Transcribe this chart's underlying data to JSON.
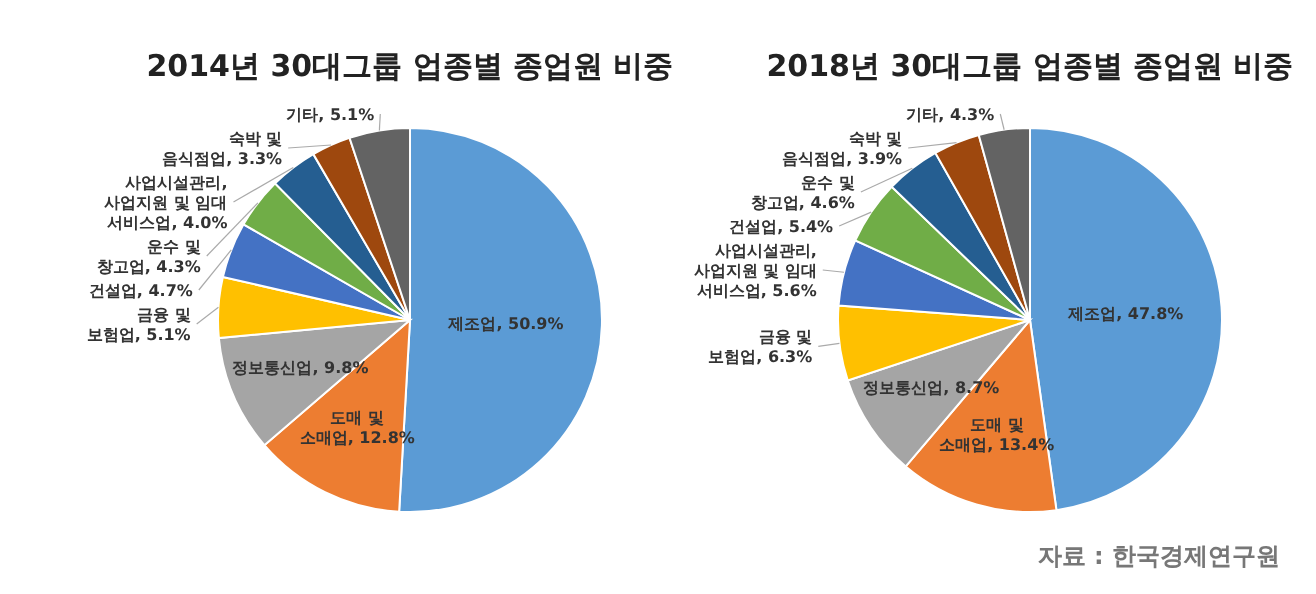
{
  "chart_data": [
    {
      "type": "pie",
      "title": "2014년 30대그룹 업종별 종업원 비중",
      "categories": [
        "제조업",
        "도매 및 소매업",
        "정보통신업",
        "금융 및 보험업",
        "건설업",
        "운수 및 창고업",
        "사업시설관리, 사업지원 및 임대 서비스업",
        "숙박 및 음식점업",
        "기타"
      ],
      "values": [
        50.9,
        12.8,
        9.8,
        5.1,
        4.7,
        4.3,
        4.0,
        3.3,
        5.1
      ],
      "colors": [
        "#5b9bd5",
        "#ed7d31",
        "#a5a5a5",
        "#ffc000",
        "#4472c4",
        "#70ad47",
        "#255e91",
        "#9e480e",
        "#636363"
      ],
      "value_labels": [
        "50.9%",
        "12.8%",
        "9.8%",
        "5.1%",
        "4.7%",
        "4.3%",
        "4.0%",
        "3.3%",
        "5.1%"
      ]
    },
    {
      "type": "pie",
      "title": "2018년 30대그룹 업종별 종업원 비중",
      "categories": [
        "제조업",
        "도매 및 소매업",
        "정보통신업",
        "금융 및 보험업",
        "사업시설관리, 사업지원 및 임대 서비스업",
        "건설업",
        "운수 및 창고업",
        "숙박 및 음식점업",
        "기타"
      ],
      "values": [
        47.8,
        13.4,
        8.7,
        6.3,
        5.6,
        5.4,
        4.6,
        3.9,
        4.3
      ],
      "colors": [
        "#5b9bd5",
        "#ed7d31",
        "#a5a5a5",
        "#ffc000",
        "#4472c4",
        "#70ad47",
        "#255e91",
        "#9e480e",
        "#636363"
      ],
      "value_labels": [
        "47.8%",
        "13.4%",
        "8.7%",
        "6.3%",
        "5.6%",
        "5.4%",
        "4.6%",
        "3.9%",
        "4.3%"
      ],
      "annotations": [
        "자료 : 한국경제연구원"
      ]
    }
  ]
}
